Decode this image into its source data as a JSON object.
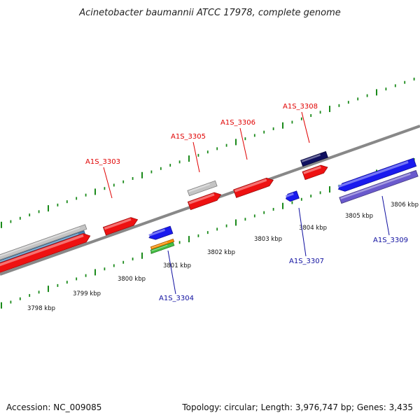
{
  "title": "Acinetobacter baumannii ATCC 17978, complete genome",
  "footer": {
    "accession": "Accession: NC_009085",
    "summary": "Topology: circular; Length: 3,976,747 bp; Genes: 3,435"
  },
  "scale_labels": [
    "3798 kbp",
    "3799 kbp",
    "3800 kbp",
    "3801 kbp",
    "3802 kbp",
    "3803 kbp",
    "3804 kbp",
    "3805 kbp",
    "3806 kbp"
  ],
  "gene_labels": [
    {
      "name": "A1S_3303",
      "color": "#e00000"
    },
    {
      "name": "A1S_3304",
      "color": "#1010a0"
    },
    {
      "name": "A1S_3305",
      "color": "#e00000"
    },
    {
      "name": "A1S_3306",
      "color": "#e00000"
    },
    {
      "name": "A1S_3307",
      "color": "#1010a0"
    },
    {
      "name": "A1S_3308",
      "color": "#e00000"
    },
    {
      "name": "A1S_3309",
      "color": "#1010a0"
    }
  ],
  "colors": {
    "forward_gene": "#ee1111",
    "reverse_gene": "#1a1aee",
    "backbone": "#888888",
    "ticks": "#1a8a1a",
    "navy": "#101060",
    "lavender": "#6a5acd",
    "orange": "#ff8c00",
    "green": "#44c044",
    "steel_blue": "#4682b4",
    "light_gray": "#c4c4c4"
  }
}
